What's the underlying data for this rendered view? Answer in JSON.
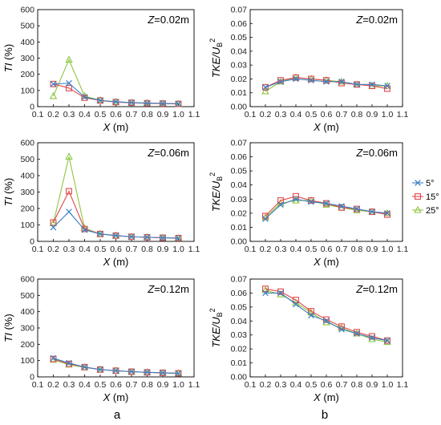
{
  "panel_letters": [
    "a",
    "b"
  ],
  "series_styles": [
    {
      "name": "5°",
      "color": "#3b7fc4",
      "marker": "x"
    },
    {
      "name": "15°",
      "color": "#e0474c",
      "marker": "square"
    },
    {
      "name": "25°",
      "color": "#8dc63f",
      "marker": "triangle"
    }
  ],
  "chart_data": [
    {
      "type": "line",
      "panel": "a-top",
      "z_label": "Z=0.02m",
      "xlabel": "X (m)",
      "ylabel": "TI (%)",
      "xlim": [
        0.1,
        1.1
      ],
      "ylim": [
        0,
        600
      ],
      "xticks": [
        "0.1",
        "0.2",
        "0.3",
        "0.4",
        "0.5",
        "0.6",
        "0.7",
        "0.8",
        "0.9",
        "1.0",
        "1.1"
      ],
      "yticks": [
        "0",
        "100",
        "200",
        "300",
        "400",
        "500",
        "600"
      ],
      "x": [
        0.2,
        0.3,
        0.4,
        0.5,
        0.6,
        0.7,
        0.8,
        0.9,
        1.0
      ],
      "series": [
        {
          "name": "5°",
          "values": [
            140,
            145,
            60,
            38,
            30,
            25,
            22,
            20,
            18
          ]
        },
        {
          "name": "15°",
          "values": [
            140,
            115,
            55,
            38,
            28,
            24,
            21,
            19,
            17
          ]
        },
        {
          "name": "25°",
          "values": [
            65,
            290,
            65,
            40,
            30,
            25,
            22,
            20,
            18
          ]
        }
      ]
    },
    {
      "type": "line",
      "panel": "a-mid",
      "z_label": "Z=0.06m",
      "xlabel": "X (m)",
      "ylabel": "TI (%)",
      "xlim": [
        0.1,
        1.1
      ],
      "ylim": [
        0,
        600
      ],
      "xticks": [
        "0.1",
        "0.2",
        "0.3",
        "0.4",
        "0.5",
        "0.6",
        "0.7",
        "0.8",
        "0.9",
        "1.0",
        "1.1"
      ],
      "yticks": [
        "0",
        "100",
        "200",
        "300",
        "400",
        "500",
        "600"
      ],
      "x": [
        0.2,
        0.3,
        0.4,
        0.5,
        0.6,
        0.7,
        0.8,
        0.9,
        1.0
      ],
      "series": [
        {
          "name": "5°",
          "values": [
            85,
            180,
            70,
            45,
            35,
            28,
            25,
            22,
            20
          ]
        },
        {
          "name": "15°",
          "values": [
            115,
            305,
            75,
            45,
            35,
            28,
            25,
            22,
            20
          ]
        },
        {
          "name": "25°",
          "values": [
            110,
            515,
            80,
            45,
            35,
            28,
            25,
            22,
            20
          ]
        }
      ]
    },
    {
      "type": "line",
      "panel": "a-bot",
      "z_label": "Z=0.12m",
      "xlabel": "X (m)",
      "ylabel": "TI (%)",
      "xlim": [
        0.1,
        1.1
      ],
      "ylim": [
        0,
        600
      ],
      "xticks": [
        "0.1",
        "0.2",
        "0.3",
        "0.4",
        "0.5",
        "0.6",
        "0.7",
        "0.8",
        "0.9",
        "1.0",
        "1.1"
      ],
      "yticks": [
        "0",
        "100",
        "200",
        "300",
        "400",
        "500",
        "600"
      ],
      "x": [
        0.2,
        0.3,
        0.4,
        0.5,
        0.6,
        0.7,
        0.8,
        0.9,
        1.0
      ],
      "series": [
        {
          "name": "5°",
          "values": [
            115,
            85,
            60,
            45,
            38,
            32,
            28,
            25,
            22
          ]
        },
        {
          "name": "15°",
          "values": [
            110,
            80,
            60,
            45,
            38,
            32,
            28,
            25,
            22
          ]
        },
        {
          "name": "25°",
          "values": [
            105,
            75,
            58,
            45,
            38,
            32,
            28,
            25,
            22
          ]
        }
      ]
    },
    {
      "type": "line",
      "panel": "b-top",
      "z_label": "Z=0.02m",
      "xlabel": "X (m)",
      "ylabel": "TKE/UB2",
      "xlim": [
        0.1,
        1.1
      ],
      "ylim": [
        0,
        0.07
      ],
      "xticks": [
        "0.1",
        "0.2",
        "0.3",
        "0.4",
        "0.5",
        "0.6",
        "0.7",
        "0.8",
        "0.9",
        "1.0",
        "1.1"
      ],
      "yticks": [
        "0.00",
        "0.01",
        "0.02",
        "0.03",
        "0.04",
        "0.05",
        "0.06",
        "0.07"
      ],
      "x": [
        0.2,
        0.3,
        0.4,
        0.5,
        0.6,
        0.7,
        0.8,
        0.9,
        1.0
      ],
      "series": [
        {
          "name": "5°",
          "values": [
            0.014,
            0.018,
            0.02,
            0.019,
            0.018,
            0.018,
            0.016,
            0.016,
            0.015
          ]
        },
        {
          "name": "15°",
          "values": [
            0.014,
            0.019,
            0.021,
            0.02,
            0.019,
            0.017,
            0.016,
            0.015,
            0.013
          ]
        },
        {
          "name": "25°",
          "values": [
            0.011,
            0.018,
            0.021,
            0.02,
            0.019,
            0.018,
            0.016,
            0.015,
            0.015
          ]
        }
      ]
    },
    {
      "type": "line",
      "panel": "b-mid",
      "z_label": "Z=0.06m",
      "xlabel": "X (m)",
      "ylabel": "TKE/UB2",
      "xlim": [
        0.1,
        1.1
      ],
      "ylim": [
        0,
        0.07
      ],
      "xticks": [
        "0.1",
        "0.2",
        "0.3",
        "0.4",
        "0.5",
        "0.6",
        "0.7",
        "0.8",
        "0.9",
        "1.0",
        "1.1"
      ],
      "yticks": [
        "0.00",
        "0.01",
        "0.02",
        "0.03",
        "0.04",
        "0.05",
        "0.06",
        "0.07"
      ],
      "x": [
        0.2,
        0.3,
        0.4,
        0.5,
        0.6,
        0.7,
        0.8,
        0.9,
        1.0
      ],
      "series": [
        {
          "name": "5°",
          "values": [
            0.016,
            0.026,
            0.03,
            0.028,
            0.027,
            0.025,
            0.023,
            0.021,
            0.02
          ]
        },
        {
          "name": "15°",
          "values": [
            0.018,
            0.029,
            0.032,
            0.029,
            0.027,
            0.024,
            0.023,
            0.021,
            0.019
          ]
        },
        {
          "name": "25°",
          "values": [
            0.017,
            0.027,
            0.029,
            0.029,
            0.026,
            0.024,
            0.022,
            0.021,
            0.02
          ]
        }
      ]
    },
    {
      "type": "line",
      "panel": "b-bot",
      "z_label": "Z=0.12m",
      "xlabel": "X (m)",
      "ylabel": "TKE/UB2",
      "xlim": [
        0.1,
        1.1
      ],
      "ylim": [
        0,
        0.07
      ],
      "xticks": [
        "0.1",
        "0.2",
        "0.3",
        "0.4",
        "0.5",
        "0.6",
        "0.7",
        "0.8",
        "0.9",
        "1.0",
        "1.1"
      ],
      "yticks": [
        "0.00",
        "0.01",
        "0.02",
        "0.03",
        "0.04",
        "0.05",
        "0.06",
        "0.07"
      ],
      "x": [
        0.2,
        0.3,
        0.4,
        0.5,
        0.6,
        0.7,
        0.8,
        0.9,
        1.0
      ],
      "series": [
        {
          "name": "5°",
          "values": [
            0.06,
            0.06,
            0.052,
            0.044,
            0.04,
            0.034,
            0.031,
            0.028,
            0.026
          ]
        },
        {
          "name": "15°",
          "values": [
            0.063,
            0.061,
            0.055,
            0.047,
            0.041,
            0.036,
            0.032,
            0.029,
            0.026
          ]
        },
        {
          "name": "25°",
          "values": [
            0.062,
            0.059,
            0.053,
            0.046,
            0.039,
            0.035,
            0.031,
            0.027,
            0.025
          ]
        }
      ]
    }
  ]
}
